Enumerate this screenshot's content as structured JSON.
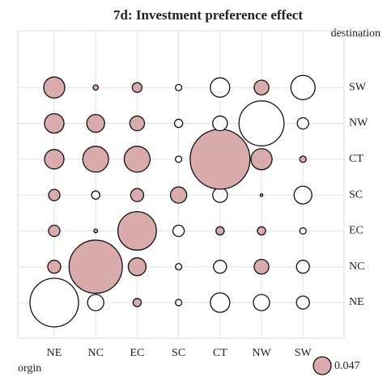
{
  "chart_data": {
    "type": "bubble",
    "title": "7d: Investment preference effect",
    "xlabel": "orgin",
    "ylabel": "destination",
    "x_categories": [
      "NE",
      "NC",
      "EC",
      "SC",
      "CT",
      "NW",
      "SW"
    ],
    "y_categories": [
      "NE",
      "NC",
      "EC",
      "SC",
      "CT",
      "NW",
      "SW"
    ],
    "values": [
      [
        -0.35,
        -0.039,
        0.01,
        -0.006,
        -0.056,
        -0.039,
        -0.025
      ],
      [
        0.025,
        0.42,
        0.047,
        -0.006,
        -0.025,
        0.032,
        -0.025
      ],
      [
        0.019,
        0.002,
        0.22,
        -0.019,
        0.01,
        0.01,
        -0.006
      ],
      [
        0.019,
        -0.01,
        0.025,
        0.039,
        -0.032,
        0.001,
        -0.047
      ],
      [
        0.056,
        0.099,
        0.099,
        -0.006,
        0.53,
        0.066,
        0.006
      ],
      [
        0.056,
        0.047,
        0.032,
        -0.01,
        -0.032,
        -0.3,
        -0.019
      ],
      [
        0.066,
        0.004,
        0.014,
        -0.006,
        -0.056,
        0.032,
        -0.087
      ]
    ],
    "size_legend": 0.047,
    "colors": {
      "positive": "#d9abab",
      "negative": "#ffffff"
    },
    "grid": true
  }
}
